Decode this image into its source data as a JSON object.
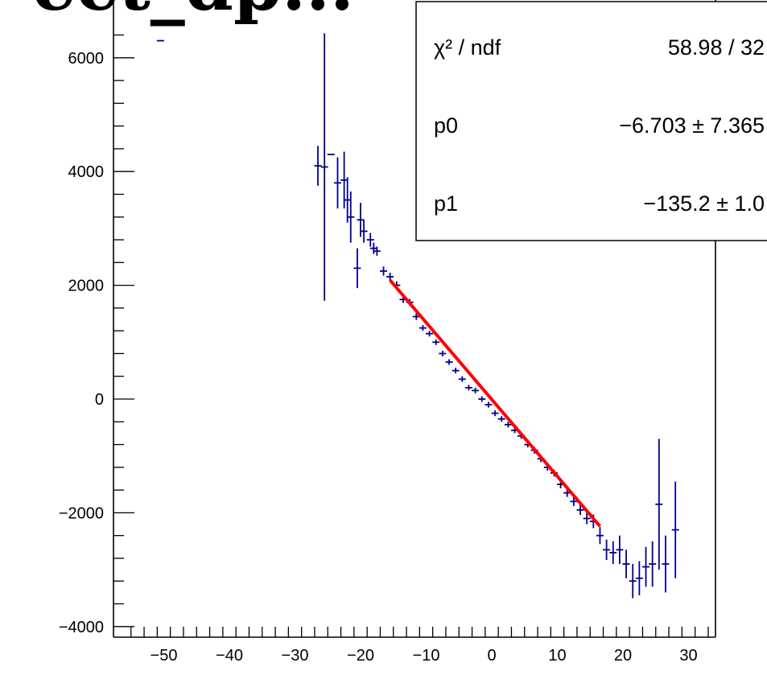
{
  "chart_data": {
    "type": "scatter",
    "title": "",
    "xlabel": "",
    "ylabel": "",
    "xlim": [
      -56,
      35
    ],
    "ylim": [
      -4000,
      6700
    ],
    "x_ticks": [
      -50,
      -40,
      -30,
      -20,
      -10,
      0,
      10,
      20,
      30
    ],
    "y_ticks": [
      -4000,
      -2000,
      0,
      2000,
      4000,
      6000
    ],
    "colors": {
      "points": "#00008b",
      "fit": "#ff0000",
      "frame": "#000000"
    },
    "series": [
      {
        "x": [
          -50.5,
          -26.5,
          -25.5,
          -24.5,
          -23.5,
          -22.5,
          -22,
          -21.5,
          -20.5,
          -20,
          -19.5,
          -18.5,
          -18,
          -17.5,
          -16.5,
          -15.5,
          -14.5,
          -13.5,
          -12.5,
          -11.5,
          -10.5,
          -9.5,
          -8.5,
          -7.5,
          -6.5,
          -5.5,
          -4.5,
          -3.5,
          -2.5,
          -1.5,
          -0.5,
          0.5,
          1.5,
          2.5,
          3.5,
          4.5,
          5.5,
          6.5,
          7.5,
          8.5,
          9.5,
          10.5,
          11.5,
          12.5,
          13.5,
          14.5,
          15.5,
          16.5,
          17.5,
          18.5,
          19.5,
          20.5,
          21.5,
          22.5,
          23.5,
          24.5,
          25.5,
          26.5,
          28
        ],
        "y": [
          6300,
          4100,
          4080,
          4300,
          3800,
          3850,
          3500,
          3200,
          2300,
          3150,
          2950,
          2800,
          2650,
          2600,
          2250,
          2150,
          2000,
          1750,
          1700,
          1450,
          1250,
          1150,
          1000,
          800,
          650,
          500,
          350,
          200,
          150,
          0,
          -100,
          -250,
          -350,
          -450,
          -550,
          -650,
          -800,
          -900,
          -1050,
          -1200,
          -1300,
          -1500,
          -1650,
          -1800,
          -1950,
          -2100,
          -2150,
          -2400,
          -2650,
          -2700,
          -2650,
          -2900,
          -3200,
          -3150,
          -2950,
          -2900,
          -1850,
          -2900,
          -2300
        ],
        "yerr": [
          0,
          350,
          2350,
          0,
          450,
          500,
          400,
          450,
          350,
          300,
          200,
          120,
          100,
          80,
          80,
          70,
          70,
          60,
          60,
          60,
          50,
          50,
          50,
          50,
          50,
          50,
          50,
          50,
          50,
          50,
          50,
          50,
          50,
          50,
          50,
          50,
          50,
          60,
          60,
          60,
          60,
          70,
          70,
          80,
          90,
          100,
          120,
          150,
          180,
          200,
          250,
          250,
          300,
          300,
          350,
          400,
          1150,
          500,
          850
        ]
      }
    ],
    "fit": {
      "name": "pol1",
      "x_range": [
        -15.5,
        16.5
      ],
      "p0": -6.703,
      "p1": -135.2
    },
    "stats": {
      "rows": [
        {
          "label": "χ² / ndf",
          "value": "58.98 / 32"
        },
        {
          "label": "p0",
          "value": "−6.703  ± 7.365"
        },
        {
          "label": "p1",
          "value": "−135.2  ± 1.0"
        }
      ]
    },
    "title_fragment": "ect_dp..."
  }
}
